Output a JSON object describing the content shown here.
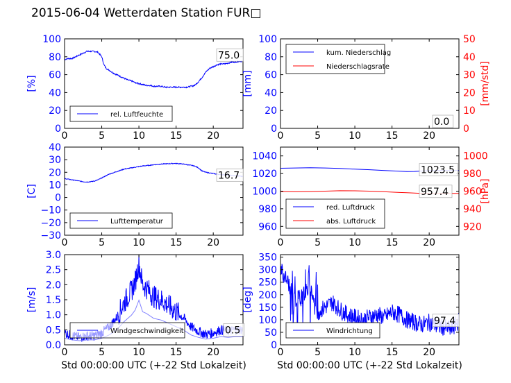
{
  "title": "2015-06-04 Wetterdaten Station FUR□",
  "xlabel": "Std 00:00:00 UTC (+-22 Std Lokalzeit)",
  "colors": {
    "primary": "#0000ff",
    "secondary": "#ff0000",
    "axis": "#000000"
  },
  "chart_data": [
    {
      "id": "humidity",
      "type": "line",
      "ylabel": "[%]",
      "ylabel_color": "#0000ff",
      "xlim": [
        0,
        24
      ],
      "ylim": [
        0,
        100
      ],
      "xticks": [
        "0",
        "5",
        "10",
        "15",
        "20"
      ],
      "yticks": [
        "0",
        "20",
        "40",
        "60",
        "80",
        "100"
      ],
      "legend_loc": "lower-left",
      "legend": [
        "rel. Luftfeuchte"
      ],
      "annotation": "75.0",
      "series": [
        {
          "name": "rel. Luftfeuchte",
          "color": "#0000ff",
          "x": [
            0,
            0.5,
            1,
            1.5,
            2,
            2.5,
            3,
            3.5,
            4,
            4.5,
            5,
            5.3,
            5.6,
            6,
            6.5,
            7,
            7.5,
            8,
            8.5,
            9,
            9.5,
            10,
            10.5,
            11,
            11.5,
            12,
            12.5,
            13,
            13.5,
            14,
            14.5,
            15,
            15.5,
            16,
            16.5,
            17,
            17.5,
            18,
            18.5,
            19,
            19.5,
            20,
            20.5,
            21,
            21.5,
            22,
            22.5,
            23,
            23.5,
            24
          ],
          "y": [
            77,
            78,
            78,
            80,
            82,
            84,
            86,
            86,
            86,
            85,
            80,
            71,
            67,
            65,
            62,
            60,
            58,
            56,
            54,
            53,
            51,
            50,
            49,
            48,
            48,
            47,
            47,
            47,
            46,
            46,
            46,
            46,
            46,
            46,
            46,
            47,
            48,
            52,
            57,
            63,
            67,
            69,
            71,
            72,
            72,
            73,
            74,
            74,
            75,
            75
          ]
        }
      ]
    },
    {
      "id": "precipitation",
      "type": "line",
      "ylabel": "[mm]",
      "ylabel_color": "#0000ff",
      "ylabel2": "[mm/std]",
      "ylabel2_color": "#ff0000",
      "xlim": [
        0,
        24
      ],
      "ylim": [
        0,
        100
      ],
      "ylim2": [
        0,
        50
      ],
      "xticks": [
        "0",
        "5",
        "10",
        "15",
        "20"
      ],
      "yticks": [
        "0",
        "20",
        "40",
        "60",
        "80",
        "100"
      ],
      "yticks2": [
        "0",
        "10",
        "20",
        "30",
        "40",
        "50"
      ],
      "legend_loc": "top-left",
      "legend": [
        "kum. Niederschlag",
        "Niederschlagsrate"
      ],
      "annotation": "0.0",
      "series": [
        {
          "name": "kum. Niederschlag",
          "color": "#0000ff",
          "x": [
            0,
            24
          ],
          "y": [
            0,
            0
          ]
        },
        {
          "name": "Niederschlagsrate",
          "color": "#ff0000",
          "axis": "right",
          "x": [
            0,
            24
          ],
          "y": [
            0,
            0
          ]
        }
      ]
    },
    {
      "id": "temperature",
      "type": "line",
      "ylabel": "[C]",
      "ylabel_color": "#0000ff",
      "xlim": [
        0,
        24
      ],
      "ylim": [
        -30,
        40
      ],
      "xticks": [
        "0",
        "5",
        "10",
        "15",
        "20"
      ],
      "yticks": [
        "−30",
        "−20",
        "−10",
        "0",
        "10",
        "20",
        "30",
        "40"
      ],
      "legend_loc": "lower-left",
      "legend": [
        "Lufttemperatur"
      ],
      "annotation": "16.7",
      "series": [
        {
          "name": "Lufttemperatur",
          "color": "#0000ff",
          "x": [
            0,
            0.5,
            1,
            1.5,
            2,
            2.5,
            3,
            3.5,
            4,
            4.5,
            5,
            5.5,
            6,
            6.5,
            7,
            7.5,
            8,
            8.5,
            9,
            9.5,
            10,
            10.5,
            11,
            11.5,
            12,
            12.5,
            13,
            13.5,
            14,
            14.5,
            15,
            15.5,
            16,
            16.5,
            17,
            17.5,
            18,
            18.5,
            19,
            19.5,
            20,
            20.5,
            21,
            21.5,
            22,
            22.5,
            23,
            23.5,
            24
          ],
          "y": [
            15,
            14.5,
            14,
            13.5,
            13,
            12.5,
            12.3,
            12.5,
            13,
            14,
            15.5,
            17,
            18.5,
            19.5,
            20.5,
            21.5,
            22.5,
            23,
            23.5,
            24,
            24.5,
            25,
            25.3,
            25.6,
            26,
            26.2,
            26.5,
            26.7,
            26.8,
            27,
            27,
            26.8,
            26.5,
            26,
            25.5,
            25,
            23.5,
            21,
            20,
            19.5,
            19,
            18.5,
            18.2,
            18,
            17.8,
            17.5,
            17.2,
            17,
            16.7
          ]
        }
      ]
    },
    {
      "id": "pressure",
      "type": "line",
      "ylabel": "",
      "ylabel2": "[hPa]",
      "ylabel2_color": "#ff0000",
      "xlim": [
        0,
        24
      ],
      "ylim": [
        950,
        1050
      ],
      "ylim2": [
        910,
        1010
      ],
      "xticks": [
        "0",
        "5",
        "10",
        "15",
        "20"
      ],
      "yticks": [
        "960",
        "980",
        "1000",
        "1020",
        "1040"
      ],
      "yticks2": [
        "920",
        "940",
        "960",
        "980",
        "1000"
      ],
      "legend_loc": "lower-left",
      "legend": [
        "red. Luftdruck",
        "abs. Luftdruck"
      ],
      "annotations": [
        "1023.5",
        "957.4"
      ],
      "series": [
        {
          "name": "red. Luftdruck",
          "color": "#0000ff",
          "x": [
            0,
            2,
            4,
            6,
            8,
            10,
            12,
            14,
            16,
            17,
            18,
            19,
            20,
            21,
            22,
            23,
            24
          ],
          "y": [
            1026,
            1026.3,
            1026.5,
            1026.3,
            1025.8,
            1025,
            1024.3,
            1023.5,
            1022.6,
            1022.3,
            1022.4,
            1022.8,
            1023.2,
            1023.5,
            1023.5,
            1023.5,
            1023.5
          ]
        },
        {
          "name": "abs. Luftdruck",
          "color": "#ff0000",
          "axis": "right",
          "x": [
            0,
            2,
            4,
            6,
            8,
            10,
            12,
            14,
            16,
            17,
            18,
            19,
            20,
            21,
            22,
            23,
            24
          ],
          "y": [
            959.5,
            959.3,
            959.5,
            960,
            960.5,
            960.4,
            960,
            959.3,
            958.5,
            958.2,
            957.8,
            957.5,
            957.4,
            957.4,
            957.4,
            957.4,
            957.4
          ]
        }
      ]
    },
    {
      "id": "wind_speed",
      "type": "line",
      "ylabel": "[m/s]",
      "ylabel_color": "#0000ff",
      "xlim": [
        0,
        24
      ],
      "ylim": [
        0,
        3
      ],
      "xticks": [
        "0",
        "5",
        "10",
        "15",
        "20"
      ],
      "yticks": [
        "0.0",
        "0.5",
        "1.0",
        "1.5",
        "2.0",
        "2.5",
        "3.0"
      ],
      "xlabel": "Std 00:00:00 UTC (+-22 Std Lokalzeit)",
      "legend_loc": "lower-left",
      "legend": [
        "Windgeschwindigkeit"
      ],
      "annotation": "0.5",
      "series": [
        {
          "name": "Windgeschwindigkeit",
          "color": "#0000ff",
          "x": [
            0,
            1,
            2,
            3,
            4,
            5,
            6,
            7,
            8,
            9,
            9.5,
            10,
            10.5,
            11,
            12,
            13,
            14,
            15,
            16,
            17,
            18,
            19,
            20,
            21,
            22,
            23,
            24
          ],
          "y": [
            0.4,
            0.3,
            0.25,
            0.3,
            0.3,
            0.4,
            0.6,
            0.9,
            1.4,
            1.8,
            2.1,
            2.7,
            2.0,
            1.9,
            1.6,
            1.5,
            1.3,
            1.1,
            0.9,
            0.6,
            0.45,
            0.35,
            0.4,
            0.5,
            0.45,
            0.5,
            0.5
          ]
        }
      ]
    },
    {
      "id": "wind_direction",
      "type": "line",
      "ylabel": "[deg]",
      "ylabel_color": "#0000ff",
      "xlim": [
        0,
        24
      ],
      "ylim": [
        0,
        360
      ],
      "xticks": [
        "0",
        "5",
        "10",
        "15",
        "20"
      ],
      "yticks": [
        "0",
        "50",
        "100",
        "150",
        "200",
        "250",
        "300",
        "350"
      ],
      "xlabel": "Std 00:00:00 UTC (+-22 Std Lokalzeit)",
      "legend_loc": "lower-left",
      "legend": [
        "Windrichtung"
      ],
      "annotation": "97.4",
      "series": [
        {
          "name": "Windrichtung",
          "color": "#0000ff",
          "x": [
            0,
            1,
            2,
            3,
            4,
            5,
            6,
            7,
            8,
            9,
            10,
            11,
            12,
            13,
            14,
            15,
            16,
            17,
            18,
            19,
            20,
            21,
            22,
            23,
            24
          ],
          "y": [
            300,
            250,
            180,
            200,
            230,
            130,
            150,
            170,
            140,
            120,
            110,
            100,
            110,
            120,
            110,
            130,
            120,
            100,
            90,
            80,
            90,
            75,
            70,
            60,
            97
          ]
        }
      ]
    }
  ]
}
